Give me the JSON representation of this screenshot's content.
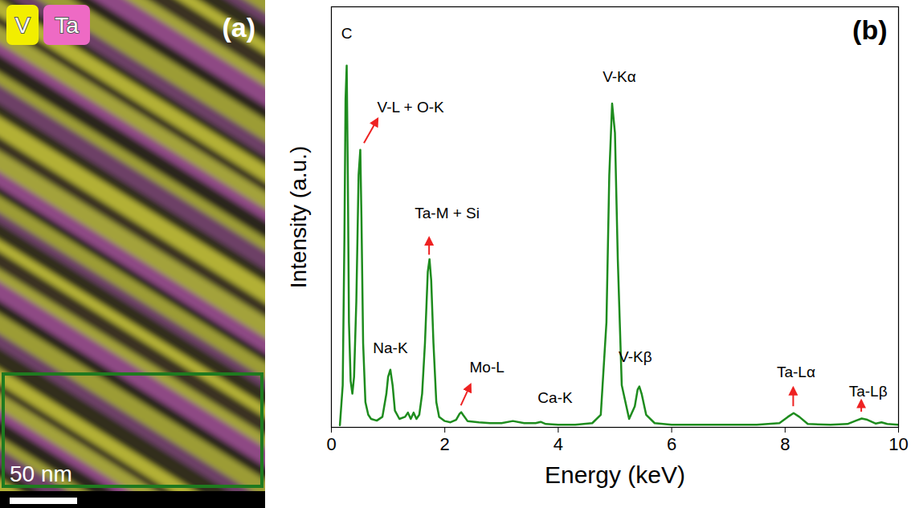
{
  "chart_data": {
    "type": "line",
    "title": "(b)",
    "x_label": "Energy (keV)",
    "y_label": "Intensity (a.u.)",
    "color": "#1e8c1e",
    "x": [
      0.15,
      0.2,
      0.23,
      0.25,
      0.27,
      0.29,
      0.31,
      0.34,
      0.37,
      0.4,
      0.44,
      0.48,
      0.51,
      0.53,
      0.56,
      0.6,
      0.65,
      0.7,
      0.8,
      0.9,
      0.97,
      1.0,
      1.04,
      1.08,
      1.12,
      1.2,
      1.3,
      1.35,
      1.4,
      1.45,
      1.5,
      1.55,
      1.6,
      1.65,
      1.7,
      1.73,
      1.76,
      1.8,
      1.85,
      1.9,
      2.0,
      2.1,
      2.2,
      2.26,
      2.29,
      2.32,
      2.4,
      2.6,
      2.8,
      3.0,
      3.2,
      3.4,
      3.6,
      3.69,
      3.78,
      4.0,
      4.3,
      4.6,
      4.75,
      4.85,
      4.9,
      4.95,
      5.0,
      5.05,
      5.12,
      5.25,
      5.35,
      5.4,
      5.43,
      5.47,
      5.55,
      5.7,
      6.0,
      6.5,
      7.0,
      7.5,
      7.9,
      8.05,
      8.15,
      8.25,
      8.4,
      8.8,
      9.1,
      9.25,
      9.35,
      9.45,
      9.6,
      9.7,
      9.8,
      10.0
    ],
    "values": [
      0.5,
      10,
      45,
      78,
      86,
      60,
      25,
      11,
      8,
      12,
      30,
      60,
      66,
      50,
      20,
      6,
      3,
      2,
      1.6,
      2.5,
      8,
      12,
      13.7,
      10,
      4,
      2,
      2.5,
      3.5,
      2,
      3.5,
      2,
      3,
      8,
      20,
      37,
      40,
      35,
      20,
      6,
      2.5,
      1.5,
      1.2,
      1.8,
      3.2,
      3.6,
      3,
      1.5,
      1.2,
      1,
      1,
      1.5,
      1,
      1,
      1.3,
      0.8,
      0.6,
      0.6,
      1,
      3,
      25,
      60,
      77,
      70,
      40,
      10,
      2,
      5,
      9,
      9.7,
      8,
      3,
      1,
      0.6,
      0.6,
      0.6,
      0.6,
      1,
      2.5,
      3.4,
      2.5,
      0.8,
      0.6,
      0.8,
      1.6,
      2.1,
      1.8,
      0.9,
      1.2,
      0.8,
      0.6
    ],
    "xlim": [
      0,
      10
    ],
    "xticks": [
      0,
      2,
      4,
      6,
      8,
      10
    ],
    "ylim": [
      0,
      100
    ],
    "yticks": [],
    "tick_labels": "x",
    "annotations": [
      {
        "text": "C",
        "x": 0.27
      },
      {
        "text": "V-L + O-K",
        "x": 0.51
      },
      {
        "text": "Na-K",
        "x": 1.04
      },
      {
        "text": "Ta-M + Si",
        "x": 1.73
      },
      {
        "text": "Mo-L",
        "x": 2.29
      },
      {
        "text": "Ca-K",
        "x": 3.69
      },
      {
        "text": "V-Kα",
        "x": 4.95
      },
      {
        "text": "V-Kβ",
        "x": 5.43
      },
      {
        "text": "Ta-Lα",
        "x": 8.15
      },
      {
        "text": "Ta-Lβ",
        "x": 9.35
      }
    ]
  },
  "map_panel": {
    "label": "(a)",
    "channels": [
      {
        "name": "V",
        "color": "#f2ee00"
      },
      {
        "name": "Ta",
        "color": "#ee6ac4"
      }
    ],
    "scale_bar": "50 nm"
  }
}
